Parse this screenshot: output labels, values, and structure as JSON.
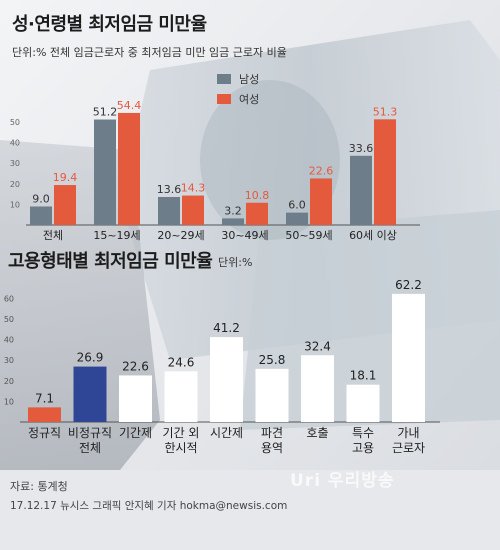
{
  "colors": {
    "male": "#6d7d8a",
    "female": "#e45a3d",
    "regular": "#e45a3d",
    "irregular": "#2f4596",
    "other": "#ffffff"
  },
  "header": {
    "title": "성·연령별 최저임금 미만율",
    "unit": "단위:% 전체 임금근로자 중 최저임금 미만 임금 근로자 비율"
  },
  "section2": {
    "title": "고용형태별 최저임금 미만율",
    "unit": "단위:%"
  },
  "footer": {
    "source": "자료: 통계청",
    "credit": "17.12.17 뉴시스 그래픽 안지혜 기자 hokma@newsis.com"
  },
  "watermark": "Uri 우리방송",
  "chart_data": [
    {
      "type": "bar",
      "title": "성·연령별 최저임금 미만율",
      "categories": [
        "전체",
        "15~19세",
        "20~29세",
        "30~49세",
        "50~59세",
        "60세 이상"
      ],
      "series": [
        {
          "name": "남성",
          "values": [
            9.0,
            51.2,
            13.6,
            3.2,
            6.0,
            33.6
          ]
        },
        {
          "name": "여성",
          "values": [
            19.4,
            54.4,
            14.3,
            10.8,
            22.6,
            51.3
          ]
        }
      ],
      "value_labels": {
        "male": [
          "9.0",
          "51.2",
          "13.6",
          "3.2",
          "6.0",
          "33.6"
        ],
        "female": [
          "19.4",
          "54.4",
          "14.3",
          "10.8",
          "22.6",
          "51.3"
        ]
      },
      "yticks": [
        "10",
        "20",
        "30",
        "40",
        "50"
      ],
      "ylim": [
        0,
        55
      ],
      "legend": "top-center"
    },
    {
      "type": "bar",
      "title": "고용형태별 최저임금 미만율",
      "categories": [
        [
          "정규직"
        ],
        [
          "비정규직",
          "전체"
        ],
        [
          "기간제"
        ],
        [
          "기간 외",
          "한시적"
        ],
        [
          "시간제"
        ],
        [
          "파견",
          "용역"
        ],
        [
          "호출"
        ],
        [
          "특수",
          "고용"
        ],
        [
          "가내",
          "근로자"
        ]
      ],
      "values": [
        7.1,
        26.9,
        22.6,
        24.6,
        41.2,
        25.8,
        32.4,
        18.1,
        62.2
      ],
      "value_labels": [
        "7.1",
        "26.9",
        "22.6",
        "24.6",
        "41.2",
        "25.8",
        "32.4",
        "18.1",
        "62.2"
      ],
      "bar_color_keys": [
        "regular",
        "irregular",
        "other",
        "other",
        "other",
        "other",
        "other",
        "other",
        "other"
      ],
      "yticks": [
        "10",
        "20",
        "30",
        "40",
        "50",
        "60"
      ],
      "ylim": [
        0,
        65
      ]
    }
  ]
}
